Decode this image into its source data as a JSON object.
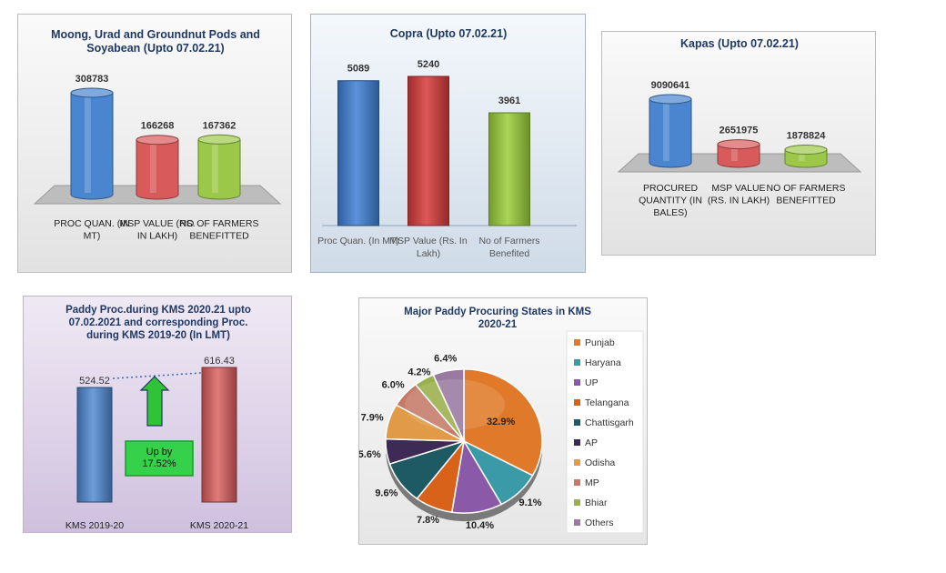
{
  "chart_data": [
    {
      "type": "bar",
      "title": "Moong, Urad and Groundnut Pods and Soyabean (Upto 07.02.21)",
      "categories": [
        "PROC QUAN. (IN MT)",
        "MSP VALUE (RS. IN LAKH)",
        "NO OF FARMERS BENEFITTED"
      ],
      "values": [
        308783,
        166268,
        167362
      ],
      "colors": [
        "#4a86cf",
        "#d85a5a",
        "#9cc84a"
      ]
    },
    {
      "type": "bar",
      "title": "Copra (Upto 07.02.21)",
      "categories": [
        "Proc Quan. (In MT)",
        "MSP Value (Rs. In Lakh)",
        "No of Farmers Benefited"
      ],
      "values": [
        5089,
        5240,
        3961
      ],
      "colors": [
        "#3f7fd4",
        "#d63a3a",
        "#9acd3a"
      ]
    },
    {
      "type": "bar",
      "title": "Kapas (Upto 07.02.21)",
      "categories": [
        "PROCURED QUANTITY (IN BALES)",
        "MSP VALUE (RS. IN LAKH)",
        "NO OF FARMERS BENEFITTED"
      ],
      "values": [
        9090641,
        2651975,
        1878824
      ],
      "colors": [
        "#4a86cf",
        "#d85a5a",
        "#9cc84a"
      ]
    },
    {
      "type": "bar",
      "title": "Paddy Proc.during KMS 2020.21 upto 07.02.2021 and corresponding Proc. during KMS 2019-20 (In LMT)",
      "categories": [
        "KMS 2019-20",
        "KMS 2020-21"
      ],
      "values": [
        524.52,
        616.43
      ],
      "value_labels": [
        "524.52",
        "616.43"
      ],
      "annotation": "Up by 17.52%",
      "colors": [
        "#4a86cf",
        "#d85a5a"
      ]
    },
    {
      "type": "pie",
      "title": "Major Paddy Procuring States in KMS 2020-21",
      "labels": [
        "Punjab",
        "Haryana",
        "UP",
        "Telangana",
        "Chattisgarh",
        "AP",
        "Odisha",
        "MP",
        "Bhiar",
        "Others"
      ],
      "values": [
        32.9,
        9.1,
        10.4,
        7.8,
        9.6,
        5.6,
        7.9,
        6.0,
        4.2,
        6.4
      ],
      "value_labels": [
        "32.9%",
        "9.1%",
        "10.4%",
        "7.8%",
        "9.6%",
        "5.6%",
        "7.9%",
        "6.0%",
        "4.2%",
        "6.4%"
      ],
      "colors": [
        "#e07a2a",
        "#3a9aa8",
        "#8a5aa8",
        "#d9621a",
        "#1e5a63",
        "#3d2a55",
        "#e09a48",
        "#c57a68",
        "#9ab04a",
        "#9a7aa0"
      ],
      "legend_position": "right"
    }
  ]
}
